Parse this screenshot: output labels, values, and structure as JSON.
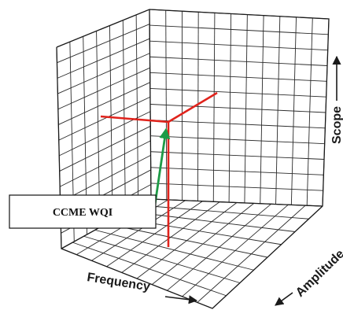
{
  "axes": {
    "frequency": "Frequency",
    "amplitude": "Amplitude",
    "scope": "Scope"
  },
  "index_label": "CCME WQI",
  "colors": {
    "axes_lines": "#e0231c",
    "index_vector": "#1d9b46",
    "grid": "#2a2a2a"
  }
}
